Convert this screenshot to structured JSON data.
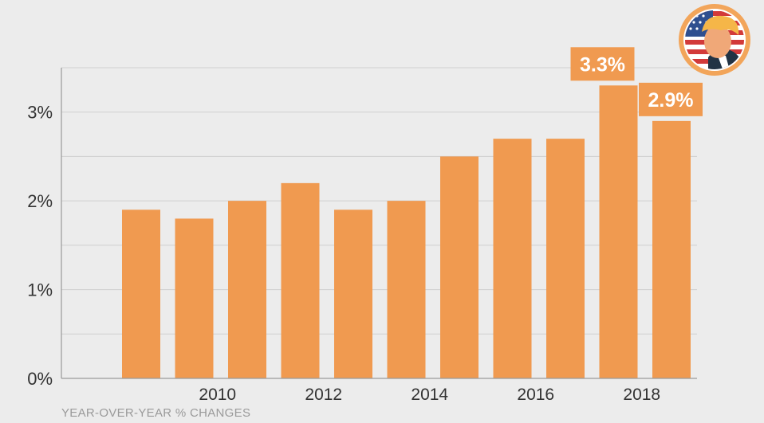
{
  "chart_data": {
    "type": "bar",
    "x": [
      2009,
      2010,
      2011,
      2012,
      2013,
      2014,
      2015,
      2016,
      2017,
      2018,
      2019
    ],
    "values": [
      1.9,
      1.8,
      2.0,
      2.2,
      1.9,
      2.0,
      2.5,
      2.7,
      2.7,
      3.3,
      2.9
    ],
    "ylim": [
      0,
      3.5
    ],
    "yticks": [
      0,
      1,
      2,
      3
    ],
    "ytick_labels": [
      "0%",
      "1%",
      "2%",
      "3%"
    ],
    "xtick_labels": [
      "2010",
      "2012",
      "2014",
      "2016",
      "2018"
    ],
    "xtick_years": [
      2010,
      2012,
      2014,
      2016,
      2018
    ],
    "callouts": [
      {
        "year": 2018,
        "label": "3.3%"
      },
      {
        "year": 2019,
        "label": "2.9%"
      }
    ],
    "grid": true,
    "bar_color": "#f09a50",
    "callout_color": "#f09a50"
  },
  "caption": "YEAR-OVER-YEAR % CHANGES",
  "logo": {
    "icon": "flag-portrait-badge-icon"
  }
}
